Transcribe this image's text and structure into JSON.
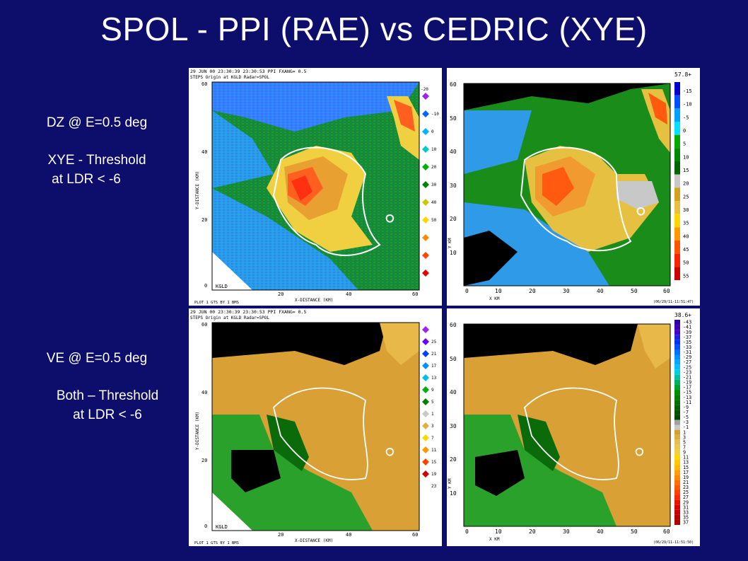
{
  "slide": {
    "title": "SPOL - PPI (RAE) vs CEDRIC (XYE)"
  },
  "captions": {
    "dz_line1": "DZ @ E=0.5 deg",
    "dz_line2": "XYE - Threshold",
    "dz_line3": "at   LDR < -6",
    "ve_line1": "VE @ E=0.5 deg",
    "ve_line2": "Both – Threshold",
    "ve_line3": "at  LDR < -6"
  },
  "ppi_top": {
    "header_line1": "29 JUN 00    23:30:39 23:30:53    PPI FXANG=   0.5",
    "header_line2": "STEPS   Origin at KGLD    Radar=SPOL",
    "y_axis_label": "Y-DISTANCE (KM)",
    "x_axis_label": "X-DISTANCE (KM)",
    "y_ticks": [
      "60",
      "40",
      "20",
      "0"
    ],
    "x_ticks": [
      "20",
      "40",
      "60"
    ],
    "site_label": "KGLD",
    "footer": "PLOT  1 GTS BY  1 BMS",
    "scale_top": "-20",
    "scale_values": [
      "-10",
      "0",
      "10",
      "20",
      "30",
      "40",
      "50"
    ],
    "scale_colors": [
      "#a020f0",
      "#0066ff",
      "#00b4ff",
      "#00c8c8",
      "#00b000",
      "#008000",
      "#c8c800",
      "#ffd700",
      "#ff8c00",
      "#ff4500",
      "#e00000"
    ]
  },
  "cedric_top": {
    "max_label": "57.8+",
    "y_ticks": [
      "60",
      "50",
      "40",
      "30",
      "20",
      "10"
    ],
    "x_ticks": [
      "0",
      "10",
      "20",
      "30",
      "40",
      "50",
      "60"
    ],
    "x_axis_label": "X   KM",
    "y_axis_label": "Y   KM",
    "footer": "(06/29/11-11:51:47)",
    "legend_values": [
      "-15",
      "-10",
      "-5",
      "0",
      "5",
      "10",
      "15",
      "20",
      "25",
      "30",
      "35",
      "40",
      "45",
      "50",
      "55"
    ],
    "legend_colors": [
      "#0000cc",
      "#0050ff",
      "#00a0ff",
      "#00e0ff",
      "#00aa00",
      "#008800",
      "#006600",
      "#c8c8c8",
      "#d4a020",
      "#e8c040",
      "#ffd700",
      "#ff9900",
      "#ff5500",
      "#ff2200",
      "#cc0000"
    ]
  },
  "ppi_bottom": {
    "header_line1": "29 JUN 00    23:30:39 23:30:53    PPI FXANG=   0.5",
    "header_line2": "STEPS   Origin at KGLD    Radar=SPOL",
    "y_axis_label": "Y-DISTANCE (KM)",
    "x_axis_label": "X-DISTANCE (KM)",
    "y_ticks": [
      "60",
      "40",
      "20",
      "0"
    ],
    "x_ticks": [
      "20",
      "40",
      "60"
    ],
    "site_label": "KGLD",
    "footer": "PLOT  1 GTS BY  1 BMS",
    "scale_values": [
      "25",
      "21",
      "17",
      "13",
      "9",
      "5",
      "1",
      "3",
      "7",
      "11",
      "15",
      "19",
      "23"
    ],
    "scale_colors": [
      "#a020f0",
      "#6a00ff",
      "#0040ff",
      "#0090ff",
      "#00c0e0",
      "#00b000",
      "#008000",
      "#c8c8c8",
      "#e0b040",
      "#ffd700",
      "#ff9900",
      "#ff4400",
      "#cc0000"
    ]
  },
  "cedric_bottom": {
    "max_label": "38.6+",
    "y_ticks": [
      "60",
      "50",
      "40",
      "30",
      "20",
      "10"
    ],
    "x_ticks": [
      "0",
      "10",
      "20",
      "30",
      "40",
      "50",
      "60"
    ],
    "x_axis_label": "X   KM",
    "y_axis_label": "Y   KM",
    "footer": "(06/29/11-11:51:50)",
    "legend_values": [
      "-43",
      "-41",
      "-39",
      "-37",
      "-35",
      "-33",
      "-31",
      "-29",
      "-27",
      "-25",
      "-23",
      "-21",
      "-19",
      "-17",
      "-15",
      "-13",
      "-11",
      "-9",
      "-7",
      "-5",
      "-3",
      "-1",
      "1",
      "3",
      "5",
      "7",
      "9",
      "11",
      "13",
      "15",
      "17",
      "19",
      "21",
      "23",
      "25",
      "27",
      "29",
      "31",
      "33",
      "35",
      "37"
    ],
    "legend_colors": [
      "#3000a0",
      "#3a00b8",
      "#4400cc",
      "#2020e0",
      "#0030ff",
      "#0050ff",
      "#0070ff",
      "#0090ff",
      "#00a8ff",
      "#00c0ff",
      "#00d0e0",
      "#00c0a0",
      "#00b060",
      "#00a030",
      "#009000",
      "#008000",
      "#007000",
      "#006000",
      "#005000",
      "#004400",
      "#a0a0a0",
      "#c8c8c8",
      "#d0a030",
      "#d8b040",
      "#e0c050",
      "#e8c850",
      "#f0d040",
      "#ffd700",
      "#ffc800",
      "#ffb800",
      "#ffa000",
      "#ff8800",
      "#ff7000",
      "#ff5800",
      "#ff4000",
      "#ff2800",
      "#ee1000",
      "#dd0000",
      "#cc0000",
      "#bb0000",
      "#aa0000"
    ]
  }
}
